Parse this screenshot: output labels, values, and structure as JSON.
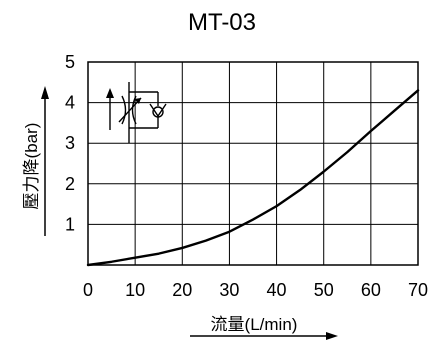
{
  "chart_data": {
    "type": "line",
    "title": "MT-03",
    "xlabel": "流量(L/min)",
    "ylabel": "壓力降(bar)",
    "xlim": [
      0,
      70
    ],
    "ylim": [
      0,
      5
    ],
    "x_ticks": [
      "0",
      "10",
      "20",
      "30",
      "40",
      "50",
      "60",
      "70"
    ],
    "y_ticks": [
      "1",
      "2",
      "3",
      "4",
      "5"
    ],
    "grid": true,
    "series": [
      {
        "x": [
          0,
          5,
          10,
          15,
          20,
          25,
          30,
          35,
          40,
          45,
          50,
          55,
          60,
          65,
          70
        ],
        "values": [
          0,
          0.08,
          0.18,
          0.28,
          0.42,
          0.6,
          0.82,
          1.12,
          1.45,
          1.85,
          2.3,
          2.78,
          3.3,
          3.8,
          4.3
        ]
      }
    ]
  },
  "symbol": {
    "type": "hydraulic-throttle-check-valve-icon"
  }
}
